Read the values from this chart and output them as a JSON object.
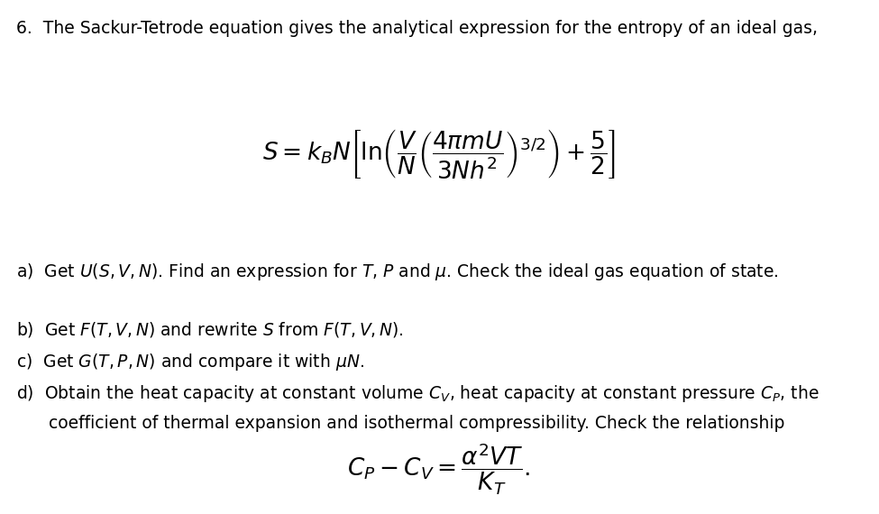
{
  "background_color": "#ffffff",
  "title_line": "6.  The Sackur-Tetrode equation gives the analytical expression for the entropy of an ideal gas,",
  "line_a": "a)  Get $\\mathit{U}(S, V, N)$. Find an expression for $T$, $P$ and $\\mu$. Check the ideal gas equation of state.",
  "line_b": "b)  Get $\\mathit{F}(T, V, N)$ and rewrite $S$ from $F(T, V, N)$.",
  "line_c": "c)  Get $\\mathit{G}(T, P, N)$ and compare it with $\\mu N$.",
  "line_d1": "d)  Obtain the heat capacity at constant volume $C_V$, heat capacity at constant pressure $C_P$, the",
  "line_d2": "      coefficient of thermal expansion and isothermal compressibility. Check the relationship",
  "fig_width": 9.75,
  "fig_height": 5.7,
  "dpi": 100,
  "text_fontsize": 13.5,
  "eq_fontsize": 19
}
